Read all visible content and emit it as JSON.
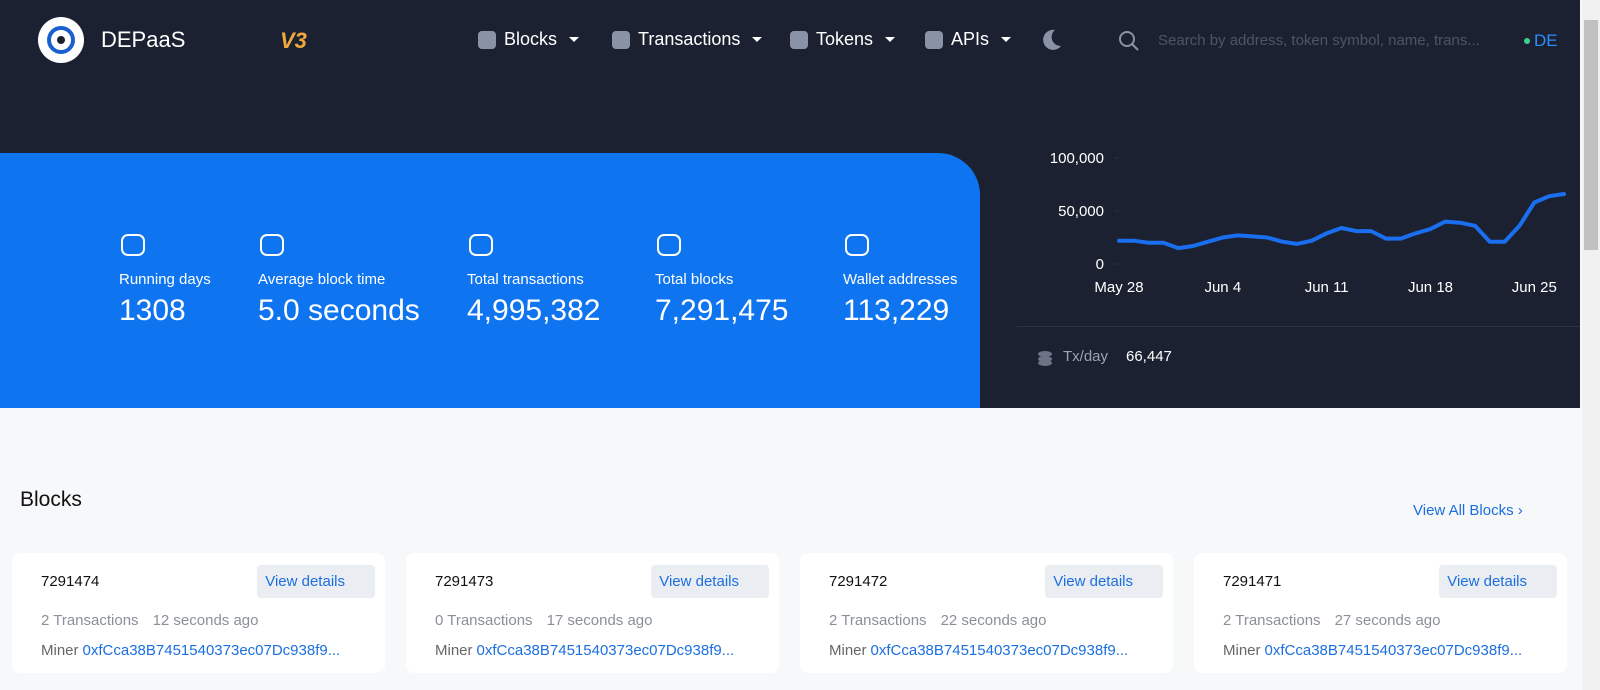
{
  "header": {
    "brand": "DEPaaS",
    "version": "V3",
    "nav": [
      "Blocks",
      "Transactions",
      "Tokens",
      "APIs"
    ],
    "search_placeholder": "Search by address, token symbol, name, trans...",
    "language": "DE"
  },
  "stats": [
    {
      "label": "Running days",
      "value": "1308"
    },
    {
      "label": "Average block time",
      "value": "5.0 seconds"
    },
    {
      "label": "Total transactions",
      "value": "4,995,382"
    },
    {
      "label": "Total blocks",
      "value": "7,291,475"
    },
    {
      "label": "Wallet addresses",
      "value": "113,229"
    }
  ],
  "chart_data": {
    "type": "line",
    "color": "#1a6ff0",
    "categories": [
      "May 28",
      null,
      null,
      null,
      null,
      null,
      null,
      "Jun 4",
      null,
      null,
      null,
      null,
      null,
      null,
      "Jun 11",
      null,
      null,
      null,
      null,
      null,
      null,
      "Jun 18",
      null,
      null,
      null,
      null,
      null,
      null,
      "Jun 25",
      null,
      null
    ],
    "values": [
      22000,
      22000,
      20000,
      20000,
      15000,
      17000,
      21000,
      25000,
      27000,
      26000,
      25000,
      21000,
      19000,
      22000,
      29000,
      34000,
      31000,
      31000,
      24000,
      24000,
      29000,
      33000,
      40000,
      39000,
      36000,
      21000,
      21000,
      36000,
      58000,
      64000,
      66000
    ],
    "ylim": [
      0,
      100000
    ],
    "yticks": [
      0,
      {
        "value": 50000,
        "label": "50,000"
      },
      {
        "value": 100000,
        "label": "100,000"
      }
    ]
  },
  "tx_per_day": {
    "label": "Tx/day",
    "value": "66,447"
  },
  "blocks": {
    "title": "Blocks",
    "view_all": "View All Blocks",
    "items": [
      {
        "number": "7291474",
        "button": "View details",
        "transactions": "2 Transactions",
        "age": "12 seconds ago",
        "miner_label": "Miner",
        "miner": "0xfCca38B7451540373ec07Dc938f9..."
      },
      {
        "number": "7291473",
        "button": "View details",
        "transactions": "0 Transactions",
        "age": "17 seconds ago",
        "miner_label": "Miner",
        "miner": "0xfCca38B7451540373ec07Dc938f9..."
      },
      {
        "number": "7291472",
        "button": "View details",
        "transactions": "2 Transactions",
        "age": "22 seconds ago",
        "miner_label": "Miner",
        "miner": "0xfCca38B7451540373ec07Dc938f9..."
      },
      {
        "number": "7291471",
        "button": "View details",
        "transactions": "2 Transactions",
        "age": "27 seconds ago",
        "miner_label": "Miner",
        "miner": "0xfCca38B7451540373ec07Dc938f9..."
      }
    ]
  }
}
